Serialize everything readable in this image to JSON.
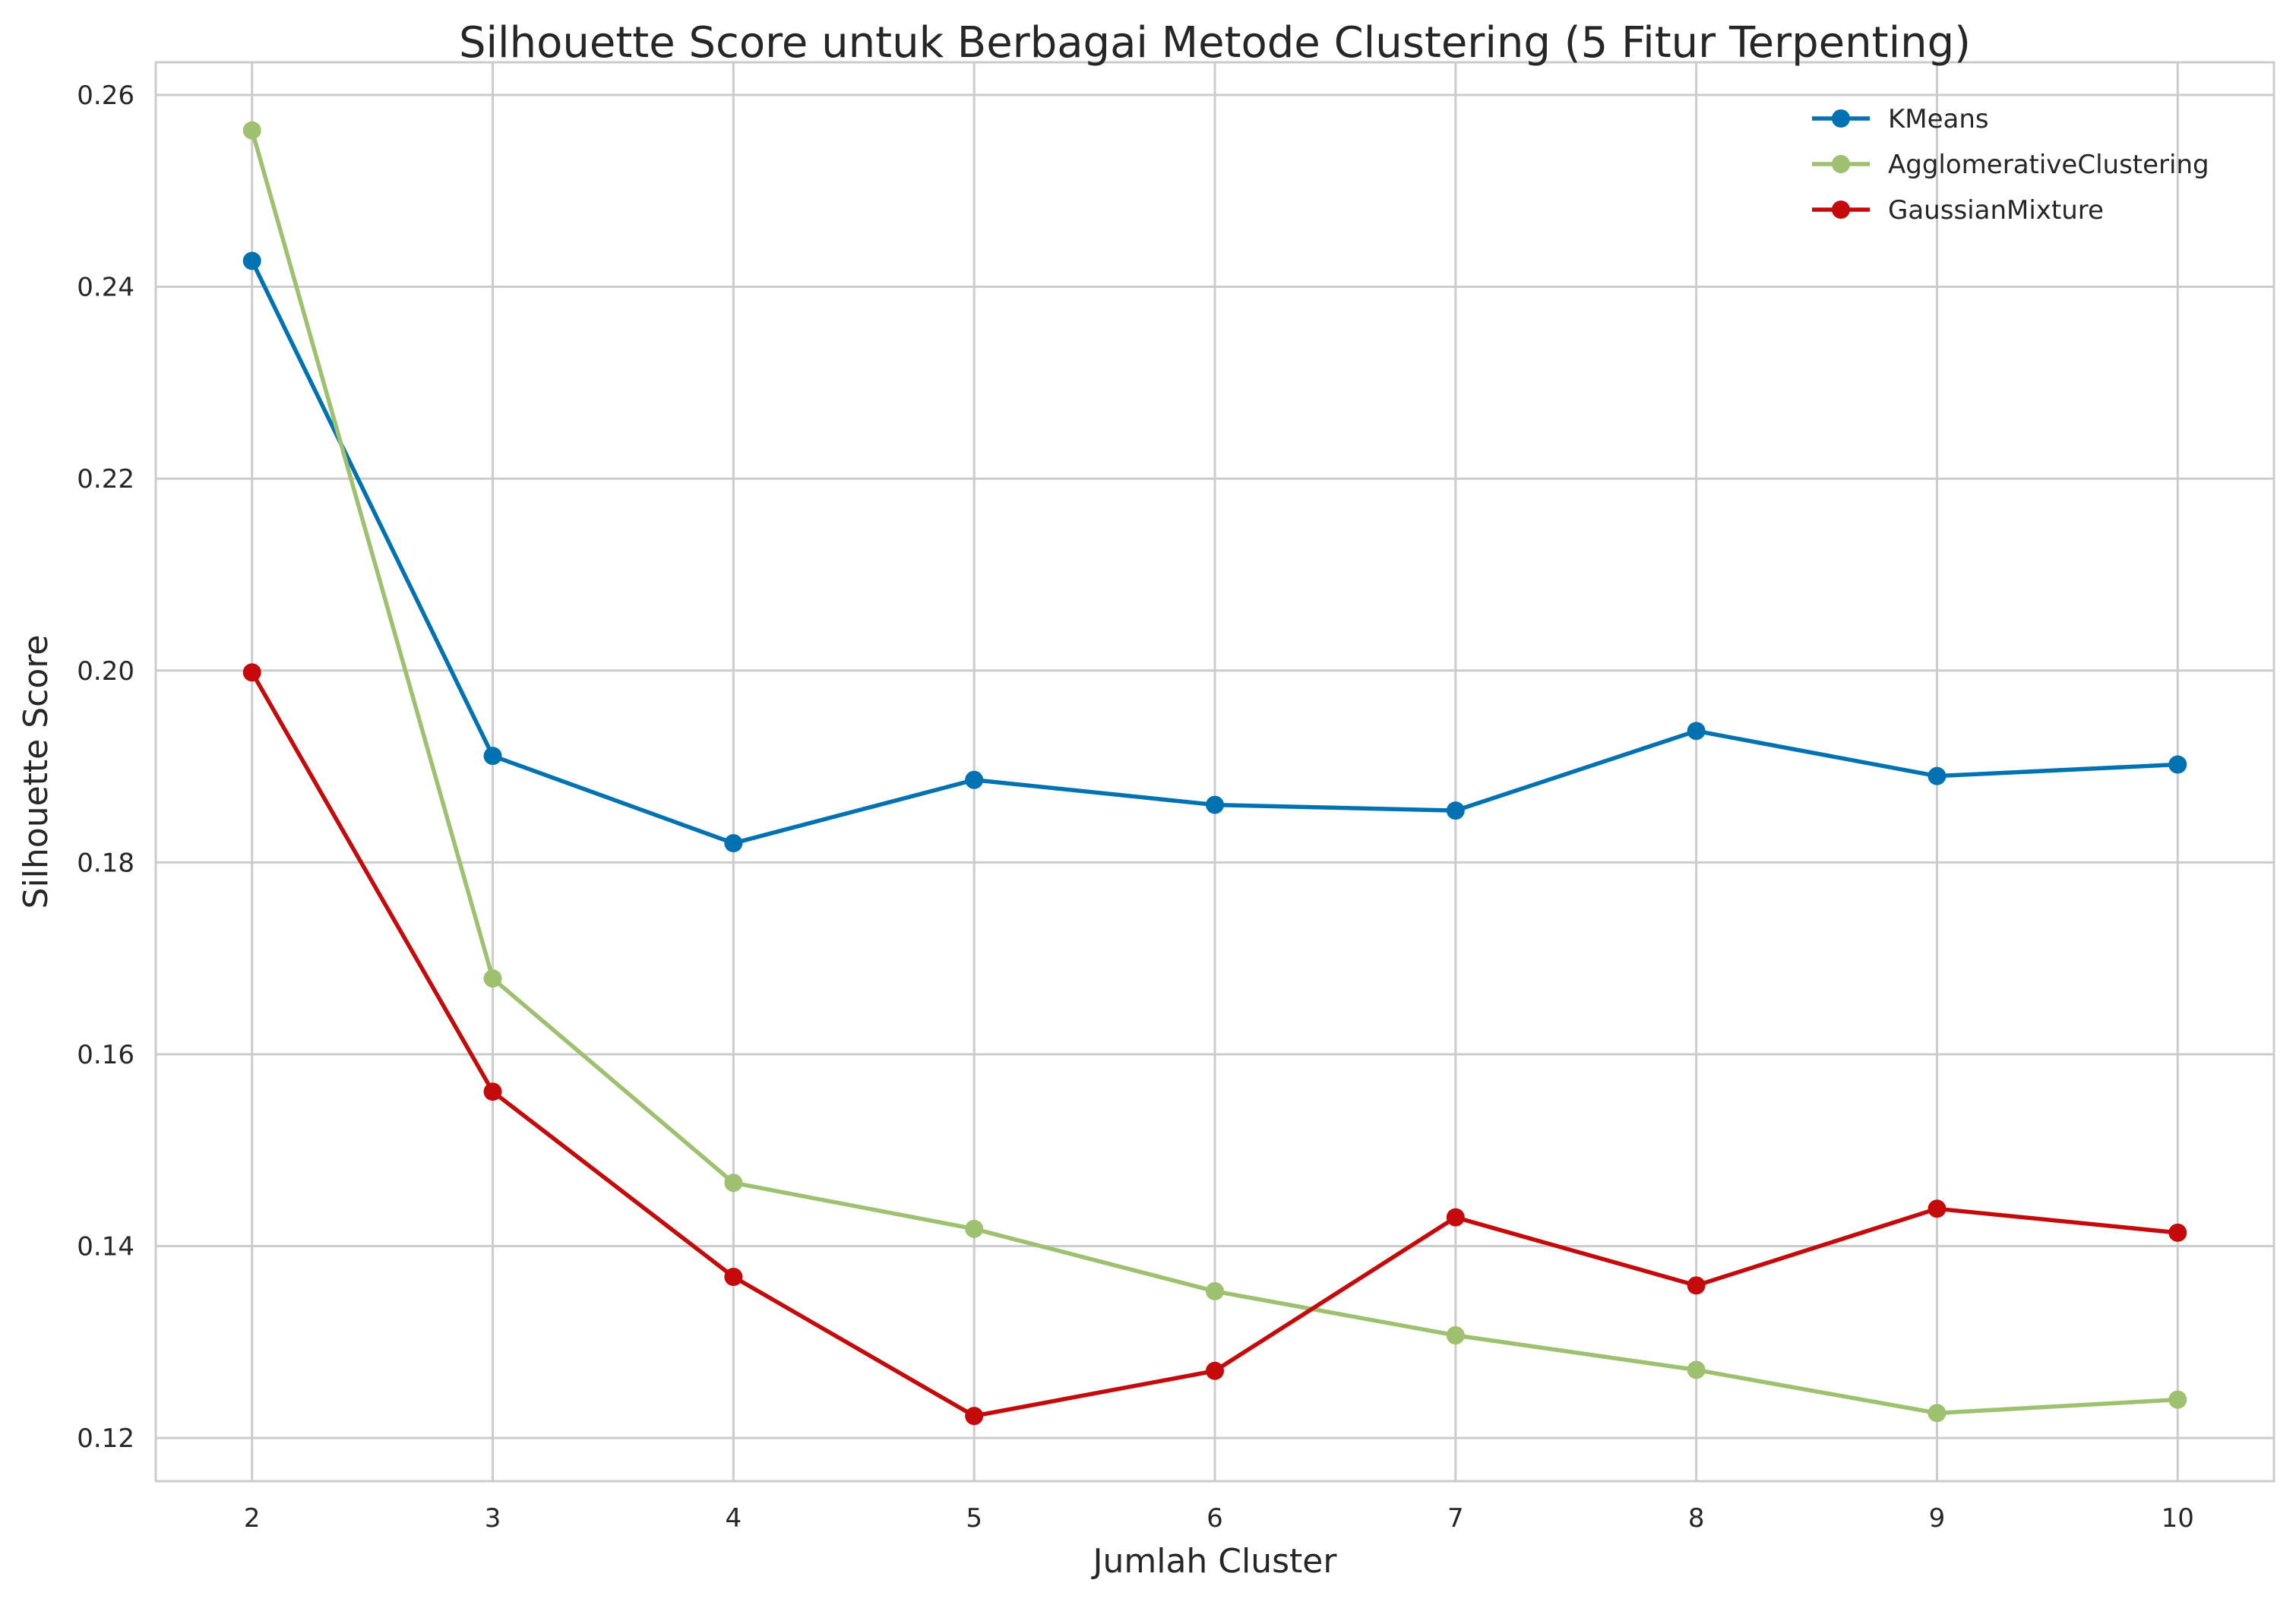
{
  "chart_data": {
    "type": "line",
    "title": "Silhouette Score untuk Berbagai Metode Clustering (5 Fitur Terpenting)",
    "xlabel": "Jumlah Cluster",
    "ylabel": "Silhouette Score",
    "x": [
      2,
      3,
      4,
      5,
      6,
      7,
      8,
      9,
      10
    ],
    "xlim": [
      1.6,
      10.4
    ],
    "ylim": [
      0.1155,
      0.2634
    ],
    "xticks": [
      2,
      3,
      4,
      5,
      6,
      7,
      8,
      9,
      10
    ],
    "yticks": [
      0.12,
      0.14,
      0.16,
      0.18,
      0.2,
      0.22,
      0.24,
      0.26
    ],
    "ytick_labels": [
      "0.12",
      "0.14",
      "0.16",
      "0.18",
      "0.20",
      "0.22",
      "0.24",
      "0.26"
    ],
    "grid": true,
    "legend_position": "top-right",
    "series": [
      {
        "name": "KMeans",
        "color": "#0072b2",
        "marker": "circle",
        "values": [
          0.2427,
          0.1911,
          0.182,
          0.1886,
          0.186,
          0.1854,
          0.1937,
          0.189,
          0.1902
        ]
      },
      {
        "name": "AgglomerativeClustering",
        "color": "#9dc16f",
        "marker": "circle",
        "values": [
          0.2563,
          0.1679,
          0.1466,
          0.1418,
          0.1353,
          0.1307,
          0.1271,
          0.1226,
          0.124
        ]
      },
      {
        "name": "GaussianMixture",
        "color": "#c40a0a",
        "marker": "circle",
        "values": [
          0.1998,
          0.1561,
          0.1368,
          0.1223,
          0.127,
          0.143,
          0.1359,
          0.1439,
          0.1414
        ]
      }
    ],
    "colors": {
      "grid": "#cccccc",
      "spine": "#cccccc",
      "text": "#262626",
      "background": "#ffffff"
    }
  }
}
